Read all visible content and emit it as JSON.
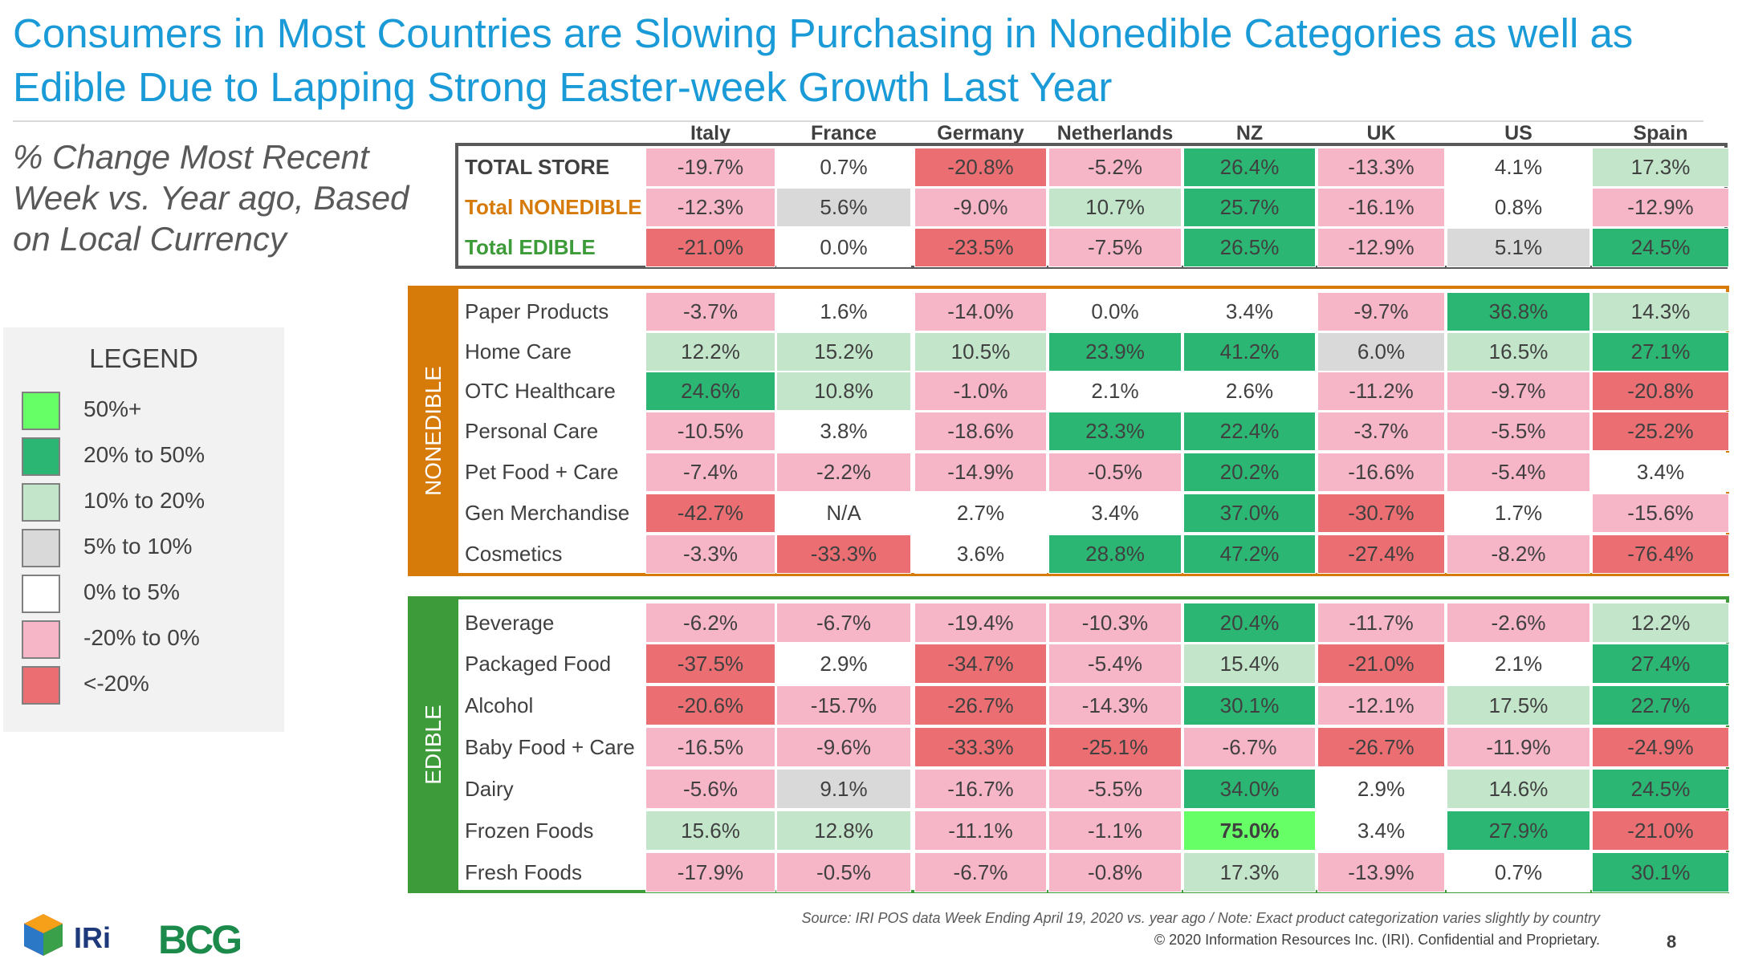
{
  "title": "Consumers in Most Countries are Slowing Purchasing in Nonedible Categories as well as Edible Due to Lapping Strong Easter-week Growth Last Year",
  "subtitle": "% Change Most Recent Week vs. Year ago, Based on Local Currency",
  "legend": {
    "title": "LEGEND",
    "items": [
      {
        "label": "50%+",
        "color": "#66ff66"
      },
      {
        "label": "20% to 50%",
        "color": "#2bb673"
      },
      {
        "label": "10% to 20%",
        "color": "#c3e6cb"
      },
      {
        "label": "5% to 10%",
        "color": "#d9d9d9"
      },
      {
        "label": "0% to 5%",
        "color": "#ffffff"
      },
      {
        "label": "-20% to 0%",
        "color": "#f7b5c8"
      },
      {
        "label": "<-20%",
        "color": "#eb6f72"
      }
    ]
  },
  "colors": {
    "nonedible": "#d67a0a",
    "edible": "#3d9b3a",
    "total_frame": "#595959",
    "total_nonedible_text": "#d67a0a",
    "total_edible_text": "#3d9b3a"
  },
  "chart_data": {
    "type": "table",
    "columns": [
      "Italy",
      "France",
      "Germany",
      "Netherlands",
      "NZ",
      "UK",
      "US",
      "Spain"
    ],
    "groups": [
      {
        "name": "",
        "rows": [
          {
            "label": "TOTAL STORE",
            "values": [
              "-19.7%",
              "0.7%",
              "-20.8%",
              "-5.2%",
              "26.4%",
              "-13.3%",
              "4.1%",
              "17.3%"
            ]
          },
          {
            "label": "Total NONEDIBLE",
            "values": [
              "-12.3%",
              "5.6%",
              "-9.0%",
              "10.7%",
              "25.7%",
              "-16.1%",
              "0.8%",
              "-12.9%"
            ]
          },
          {
            "label": "Total EDIBLE",
            "values": [
              "-21.0%",
              "0.0%",
              "-23.5%",
              "-7.5%",
              "26.5%",
              "-12.9%",
              "5.1%",
              "24.5%"
            ]
          }
        ]
      },
      {
        "name": "NONEDIBLE",
        "rows": [
          {
            "label": "Paper Products",
            "values": [
              "-3.7%",
              "1.6%",
              "-14.0%",
              "0.0%",
              "3.4%",
              "-9.7%",
              "36.8%",
              "14.3%"
            ]
          },
          {
            "label": "Home Care",
            "values": [
              "12.2%",
              "15.2%",
              "10.5%",
              "23.9%",
              "41.2%",
              "6.0%",
              "16.5%",
              "27.1%"
            ]
          },
          {
            "label": "OTC Healthcare",
            "values": [
              "24.6%",
              "10.8%",
              "-1.0%",
              "2.1%",
              "2.6%",
              "-11.2%",
              "-9.7%",
              "-20.8%"
            ]
          },
          {
            "label": "Personal Care",
            "values": [
              "-10.5%",
              "3.8%",
              "-18.6%",
              "23.3%",
              "22.4%",
              "-3.7%",
              "-5.5%",
              "-25.2%"
            ]
          },
          {
            "label": "Pet Food + Care",
            "values": [
              "-7.4%",
              "-2.2%",
              "-14.9%",
              "-0.5%",
              "20.2%",
              "-16.6%",
              "-5.4%",
              "3.4%"
            ]
          },
          {
            "label": "Gen Merchandise",
            "values": [
              "-42.7%",
              "N/A",
              "2.7%",
              "3.4%",
              "37.0%",
              "-30.7%",
              "1.7%",
              "-15.6%"
            ]
          },
          {
            "label": "Cosmetics",
            "values": [
              "-3.3%",
              "-33.3%",
              "3.6%",
              "28.8%",
              "47.2%",
              "-27.4%",
              "-8.2%",
              "-76.4%"
            ]
          }
        ]
      },
      {
        "name": "EDIBLE",
        "rows": [
          {
            "label": "Beverage",
            "values": [
              "-6.2%",
              "-6.7%",
              "-19.4%",
              "-10.3%",
              "20.4%",
              "-11.7%",
              "-2.6%",
              "12.2%"
            ]
          },
          {
            "label": "Packaged Food",
            "values": [
              "-37.5%",
              "2.9%",
              "-34.7%",
              "-5.4%",
              "15.4%",
              "-21.0%",
              "2.1%",
              "27.4%"
            ]
          },
          {
            "label": "Alcohol",
            "values": [
              "-20.6%",
              "-15.7%",
              "-26.7%",
              "-14.3%",
              "30.1%",
              "-12.1%",
              "17.5%",
              "22.7%"
            ]
          },
          {
            "label": "Baby Food + Care",
            "values": [
              "-16.5%",
              "-9.6%",
              "-33.3%",
              "-25.1%",
              "-6.7%",
              "-26.7%",
              "-11.9%",
              "-24.9%"
            ]
          },
          {
            "label": "Dairy",
            "values": [
              "-5.6%",
              "9.1%",
              "-16.7%",
              "-5.5%",
              "34.0%",
              "2.9%",
              "14.6%",
              "24.5%"
            ]
          },
          {
            "label": "Frozen Foods",
            "values": [
              "15.6%",
              "12.8%",
              "-11.1%",
              "-1.1%",
              "75.0%",
              "3.4%",
              "27.9%",
              "-21.0%"
            ]
          },
          {
            "label": "Fresh Foods",
            "values": [
              "-17.9%",
              "-0.5%",
              "-6.7%",
              "-0.8%",
              "17.3%",
              "-13.9%",
              "0.7%",
              "30.1%"
            ]
          }
        ]
      }
    ]
  },
  "footer": {
    "source": "Source: IRI POS data Week Ending April 19, 2020 vs. year ago  /  Note: Exact product categorization varies slightly by country",
    "copyright": "© 2020 Information Resources Inc. (IRI). Confidential and Proprietary.",
    "page_number": "8"
  },
  "logos": {
    "iri": "IRi",
    "bcg": "BCG"
  }
}
